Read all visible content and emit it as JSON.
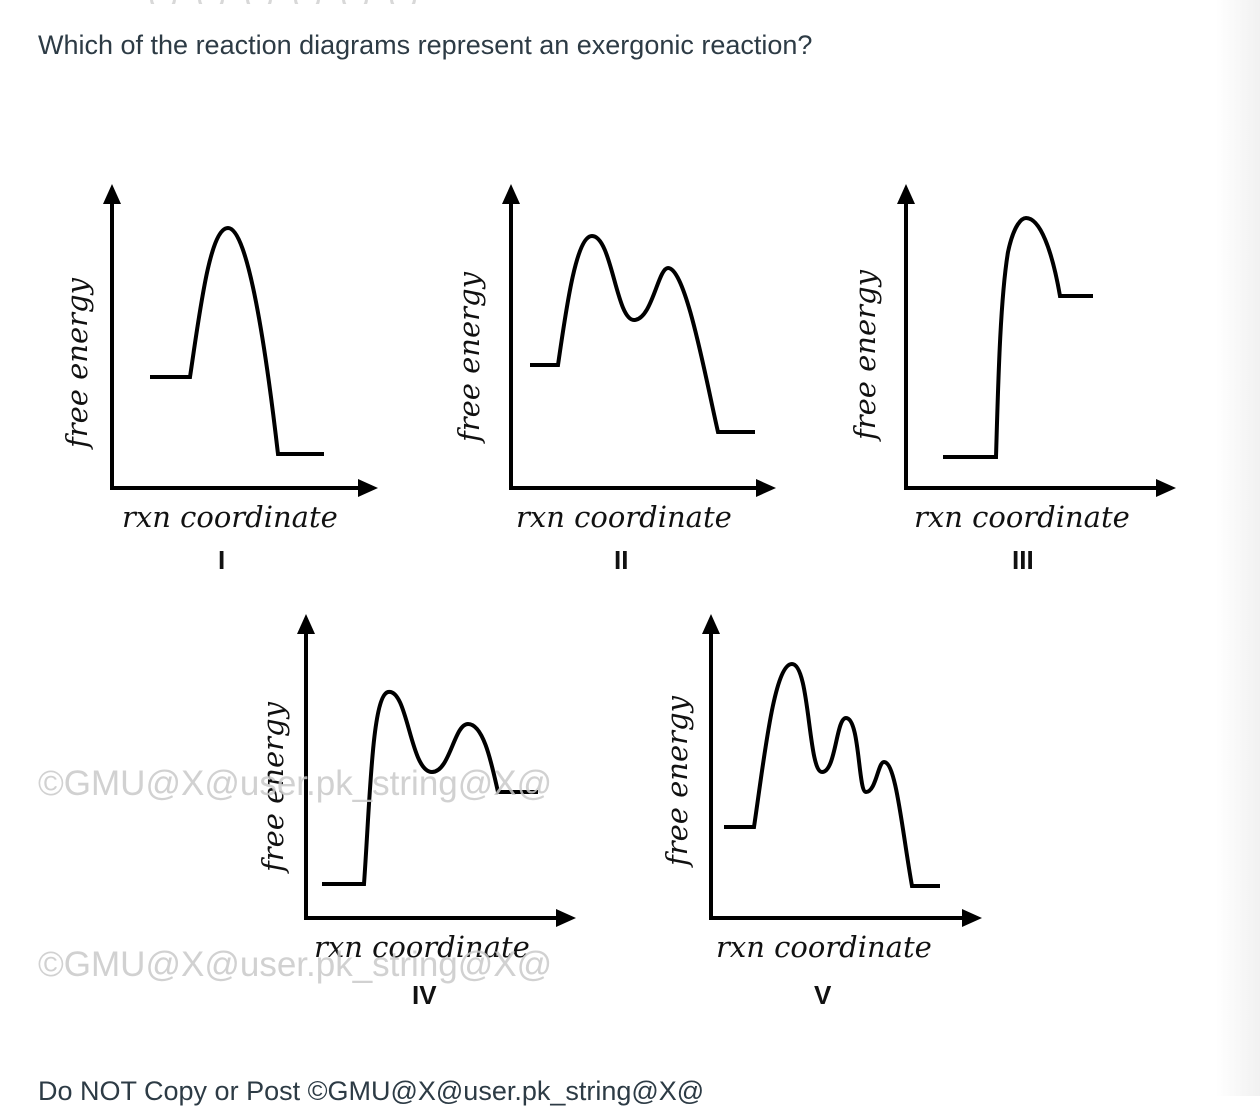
{
  "question": "Which of the reaction diagrams represent an exergonic reaction?",
  "diagrams": [
    {
      "numeral": "I",
      "ylabel": "free energy",
      "xlabel": "rxn coordinate"
    },
    {
      "numeral": "II",
      "ylabel": "free energy",
      "xlabel": "rxn coordinate"
    },
    {
      "numeral": "III",
      "ylabel": "free energy",
      "xlabel": "rxn coordinate"
    },
    {
      "numeral": "IV",
      "ylabel": "free energy",
      "xlabel": "rxn coordinate"
    },
    {
      "numeral": "V",
      "ylabel": "free energy",
      "xlabel": "rxn coordinate"
    }
  ],
  "watermarks": [
    "©GMU@X@user.pk_string@X@",
    "©GMU@X@user.pk_string@X@"
  ],
  "footer": "Do NOT Copy or Post ©GMU@X@user.pk_string@X@"
}
